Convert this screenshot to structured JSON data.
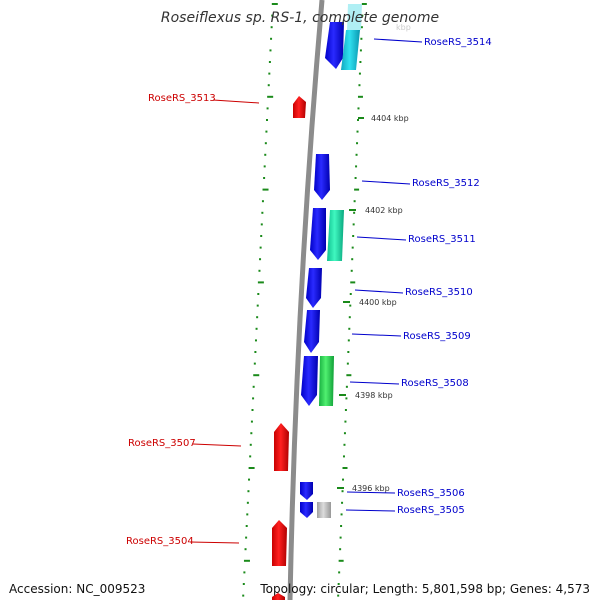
{
  "title": "Roseiflexus sp. RS-1, complete genome",
  "footer": {
    "accession": "Accession: NC_009523",
    "summary": "Topology: circular; Length: 5,801,598 bp; Genes: 4,573"
  },
  "colors": {
    "background": "#ffffff",
    "backbone": "#8c8c8c",
    "tick": "#1a8a1a",
    "forward_gene": "#e00000",
    "reverse_gene": "#1010e0",
    "reverse_label": "#0000cc",
    "forward_label": "#cc0000",
    "cyan_feature": "#18c8d8",
    "teal_feature": "#20e0a8",
    "green_feature": "#2ed860",
    "grey_feature": "#b8b8b8"
  },
  "scale_labels": [
    "4404 kbp",
    "4402 kbp",
    "4400 kbp",
    "4398 kbp",
    "4396 kbp"
  ],
  "partial_scale_label": "kbp",
  "genes": [
    {
      "id": "RoseRS_3514",
      "strand": "reverse"
    },
    {
      "id": "RoseRS_3513",
      "strand": "forward"
    },
    {
      "id": "RoseRS_3512",
      "strand": "reverse"
    },
    {
      "id": "RoseRS_3511",
      "strand": "reverse"
    },
    {
      "id": "RoseRS_3510",
      "strand": "reverse"
    },
    {
      "id": "RoseRS_3509",
      "strand": "reverse"
    },
    {
      "id": "RoseRS_3508",
      "strand": "reverse"
    },
    {
      "id": "RoseRS_3507",
      "strand": "forward"
    },
    {
      "id": "RoseRS_3506",
      "strand": "reverse"
    },
    {
      "id": "RoseRS_3505",
      "strand": "reverse"
    },
    {
      "id": "RoseRS_3504",
      "strand": "forward"
    }
  ]
}
